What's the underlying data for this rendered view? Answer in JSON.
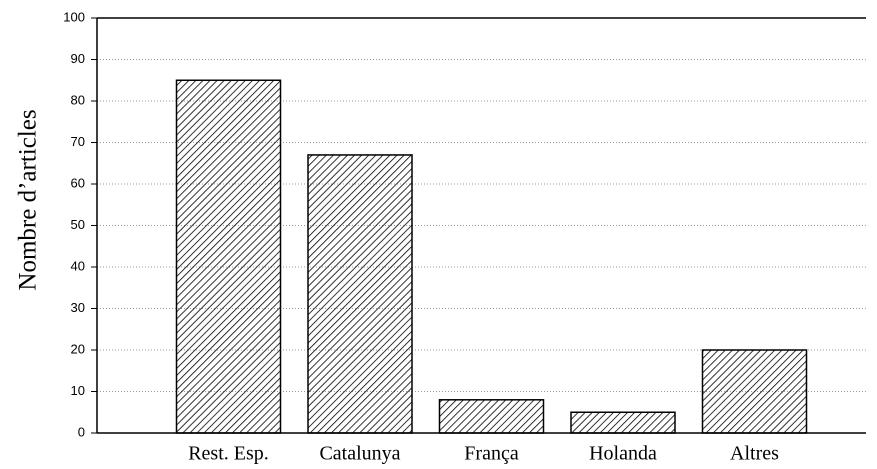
{
  "chart_data": {
    "type": "bar",
    "y_label": "Nombre d’articles",
    "categories": [
      "Rest. Esp.",
      "Catalunya",
      "França",
      "Holanda",
      "Altres"
    ],
    "values": [
      85,
      67,
      8,
      5,
      20
    ],
    "color": "#000000",
    "ylim": [
      0,
      100
    ],
    "yticks": [
      0,
      10,
      20,
      30,
      40,
      50,
      60,
      70,
      80,
      90,
      100
    ],
    "grid": true
  }
}
